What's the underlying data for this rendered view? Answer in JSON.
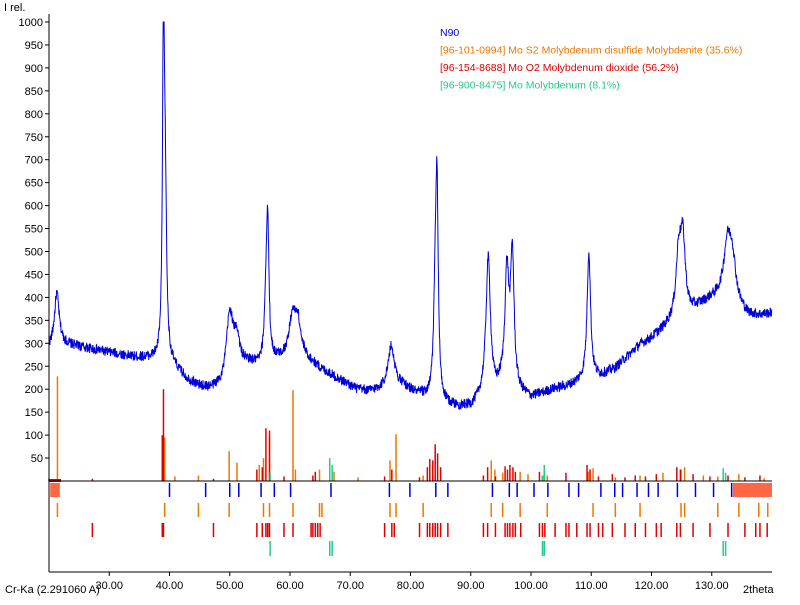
{
  "chart_data": {
    "type": "line",
    "ylabel": "I rel.",
    "xlabel": "2theta",
    "radiation": "Cr-Ka (2.291060 A)",
    "xlim": [
      20,
      140
    ],
    "ylim": [
      0,
      1000
    ],
    "x_ticks": [
      "30.00",
      "40.00",
      "50.00",
      "60.00",
      "70.00",
      "80.00",
      "90.00",
      "100.00",
      "110.00",
      "120.00",
      "130.00"
    ],
    "x_tick_values": [
      30,
      40,
      50,
      60,
      70,
      80,
      90,
      100,
      110,
      120,
      130
    ],
    "y_ticks": [
      1000,
      950,
      900,
      850,
      800,
      750,
      700,
      650,
      600,
      550,
      500,
      450,
      400,
      350,
      300,
      250,
      200,
      150,
      100,
      50
    ],
    "legend_position": "top-center",
    "series": [
      {
        "name": "N90",
        "kind": "pattern",
        "color": "#0000dd",
        "background": [
          [
            20.0,
            290
          ],
          [
            21,
            300
          ],
          [
            22,
            300
          ],
          [
            24,
            295
          ],
          [
            26,
            290
          ],
          [
            28,
            285
          ],
          [
            30,
            280
          ],
          [
            32,
            275
          ],
          [
            34,
            270
          ],
          [
            36,
            268
          ],
          [
            38,
            265
          ],
          [
            39.5,
            265
          ],
          [
            41,
            245
          ],
          [
            43,
            220
          ],
          [
            45,
            205
          ],
          [
            47,
            200
          ],
          [
            49,
            205
          ],
          [
            51,
            245
          ],
          [
            53,
            255
          ],
          [
            55,
            250
          ],
          [
            57,
            260
          ],
          [
            59,
            270
          ],
          [
            61,
            290
          ],
          [
            63,
            265
          ],
          [
            65,
            245
          ],
          [
            67,
            230
          ],
          [
            69,
            215
          ],
          [
            71,
            200
          ],
          [
            73,
            195
          ],
          [
            75,
            200
          ],
          [
            77,
            215
          ],
          [
            79,
            205
          ],
          [
            81,
            190
          ],
          [
            83,
            180
          ],
          [
            84,
            175
          ],
          [
            86,
            165
          ],
          [
            88,
            160
          ],
          [
            90,
            160
          ],
          [
            92,
            180
          ],
          [
            94,
            185
          ],
          [
            95,
            200
          ],
          [
            97,
            190
          ],
          [
            99,
            185
          ],
          [
            100,
            180
          ],
          [
            102,
            190
          ],
          [
            104,
            200
          ],
          [
            106,
            205
          ],
          [
            108,
            215
          ],
          [
            110,
            220
          ],
          [
            112,
            230
          ],
          [
            114,
            245
          ],
          [
            116,
            270
          ],
          [
            118,
            295
          ],
          [
            120,
            310
          ],
          [
            122,
            330
          ],
          [
            124,
            350
          ],
          [
            126,
            360
          ],
          [
            128,
            380
          ],
          [
            130,
            395
          ],
          [
            132,
            400
          ],
          [
            134,
            380
          ],
          [
            136,
            360
          ],
          [
            138,
            360
          ],
          [
            140,
            365
          ]
        ],
        "peaks": [
          [
            21.3,
            110,
            0.45
          ],
          [
            39.0,
            735,
            0.18
          ],
          [
            39.3,
            320,
            0.25
          ],
          [
            50.0,
            140,
            0.7
          ],
          [
            51.2,
            55,
            0.5
          ],
          [
            56.0,
            110,
            0.3
          ],
          [
            56.3,
            280,
            0.25
          ],
          [
            60.4,
            75,
            0.6
          ],
          [
            61.3,
            60,
            0.5
          ],
          [
            76.8,
            80,
            0.6
          ],
          [
            84.1,
            200,
            0.3
          ],
          [
            84.4,
            420,
            0.25
          ],
          [
            92.9,
            300,
            0.45
          ],
          [
            96.0,
            250,
            0.4
          ],
          [
            96.9,
            290,
            0.35
          ],
          [
            109.6,
            280,
            0.35
          ],
          [
            124.5,
            130,
            0.5
          ],
          [
            125.2,
            160,
            0.5
          ],
          [
            132.6,
            110,
            0.7
          ],
          [
            133.4,
            90,
            0.7
          ]
        ]
      },
      {
        "name": "[96-101-0994] Mo S2 Molybdenum disulfide Molybdenite (35.6%)",
        "kind": "reference",
        "color": "#ee7700",
        "sticks": [
          [
            21.4,
            228
          ],
          [
            39.2,
            95
          ],
          [
            40.9,
            10
          ],
          [
            44.8,
            12
          ],
          [
            49.9,
            65
          ],
          [
            51.2,
            40
          ],
          [
            54.9,
            35
          ],
          [
            55.6,
            50
          ],
          [
            56.6,
            95
          ],
          [
            60.5,
            198
          ],
          [
            60.9,
            25
          ],
          [
            64.9,
            25
          ],
          [
            67.3,
            20
          ],
          [
            71.3,
            8
          ],
          [
            76.6,
            45
          ],
          [
            77.6,
            102
          ],
          [
            82.1,
            12
          ],
          [
            83.7,
            15
          ],
          [
            93.4,
            45
          ],
          [
            94.0,
            25
          ],
          [
            95.3,
            18
          ],
          [
            98.2,
            20
          ],
          [
            99.5,
            15
          ],
          [
            102.7,
            12
          ],
          [
            109.5,
            20
          ],
          [
            110.3,
            28
          ],
          [
            114.0,
            8
          ],
          [
            118.1,
            12
          ],
          [
            121.9,
            18
          ],
          [
            124.9,
            25
          ],
          [
            125.5,
            30
          ],
          [
            128.6,
            12
          ],
          [
            131.0,
            10
          ],
          [
            134.5,
            15
          ],
          [
            138.7,
            6
          ]
        ],
        "row_marks": [
          21.4,
          39.2,
          44.8,
          49.9,
          55.6,
          56.6,
          60.5,
          64.9,
          65.3,
          76.6,
          77.6,
          82.1,
          93.4,
          95.3,
          98.2,
          102.7,
          110.3,
          114.0,
          118.1,
          124.9,
          125.5,
          131.0,
          134.5,
          137.8,
          139.3
        ]
      },
      {
        "name": "[96-154-8688] Mo O2 Molybdenum dioxide (56.2%)",
        "kind": "reference",
        "color": "#e00000",
        "sticks": [
          [
            20.0,
            5
          ],
          [
            27.2,
            5
          ],
          [
            38.8,
            100
          ],
          [
            39.0,
            200
          ],
          [
            47.3,
            5
          ],
          [
            54.5,
            25
          ],
          [
            55.4,
            30
          ],
          [
            56.0,
            115
          ],
          [
            56.6,
            110
          ],
          [
            59.0,
            10
          ],
          [
            63.8,
            12
          ],
          [
            64.2,
            20
          ],
          [
            75.7,
            10
          ],
          [
            76.9,
            25
          ],
          [
            81.5,
            8
          ],
          [
            82.8,
            30
          ],
          [
            83.2,
            48
          ],
          [
            83.7,
            45
          ],
          [
            84.1,
            80
          ],
          [
            84.5,
            60
          ],
          [
            85.0,
            30
          ],
          [
            92.1,
            12
          ],
          [
            92.8,
            30
          ],
          [
            94.1,
            10
          ],
          [
            95.7,
            32
          ],
          [
            96.1,
            25
          ],
          [
            96.5,
            35
          ],
          [
            97.0,
            30
          ],
          [
            97.4,
            20
          ],
          [
            101.4,
            20
          ],
          [
            101.9,
            12
          ],
          [
            105.8,
            18
          ],
          [
            109.3,
            35
          ],
          [
            109.8,
            25
          ],
          [
            111.2,
            10
          ],
          [
            113.5,
            15
          ],
          [
            115.6,
            8
          ],
          [
            117.3,
            12
          ],
          [
            119.0,
            10
          ],
          [
            120.8,
            15
          ],
          [
            124.2,
            30
          ],
          [
            124.8,
            25
          ],
          [
            126.9,
            15
          ],
          [
            129.7,
            10
          ],
          [
            132.7,
            12
          ],
          [
            135.5,
            8
          ],
          [
            138.0,
            12
          ]
        ],
        "row_marks": [
          27.2,
          38.8,
          39.0,
          47.3,
          54.5,
          55.4,
          56.0,
          56.3,
          56.6,
          59.0,
          60.5,
          63.5,
          63.8,
          64.2,
          64.6,
          65.0,
          75.7,
          76.9,
          77.3,
          81.5,
          82.8,
          83.2,
          83.7,
          84.1,
          84.5,
          85.0,
          86.2,
          92.1,
          92.8,
          94.1,
          95.7,
          96.1,
          96.5,
          97.0,
          97.4,
          98.3,
          101.4,
          101.9,
          102.3,
          104.0,
          105.8,
          106.3,
          107.6,
          109.3,
          109.8,
          111.2,
          111.9,
          113.5,
          115.6,
          117.3,
          119.0,
          120.8,
          121.6,
          124.2,
          124.8,
          126.9,
          129.7,
          132.7,
          135.5,
          137.3,
          138.0,
          139.2
        ]
      },
      {
        "name": "[96-900-8475] Mo Molybdenum (8.1%)",
        "kind": "reference",
        "color": "#22cc88",
        "sticks": [
          [
            56.7,
            18
          ],
          [
            66.6,
            50
          ],
          [
            67.0,
            35
          ],
          [
            101.9,
            12
          ],
          [
            102.2,
            35
          ],
          [
            131.9,
            28
          ],
          [
            132.3,
            18
          ]
        ],
        "row_marks": [
          56.7,
          66.6,
          67.0,
          101.9,
          102.2,
          131.9,
          132.3
        ]
      }
    ],
    "tick_marks_row": {
      "color": "#0000dd",
      "positions": [
        20.4,
        40.0,
        46.0,
        50.0,
        51.5,
        55.2,
        57.4,
        60.1,
        66.8,
        76.5,
        79.9,
        84.2,
        86.2,
        93.6,
        96.4,
        97.7,
        100.5,
        102.8,
        106.3,
        107.9,
        111.6,
        113.9,
        115.2,
        117.6,
        119.5,
        121.1,
        124.3,
        127.3,
        130.3,
        133.3
      ]
    }
  }
}
